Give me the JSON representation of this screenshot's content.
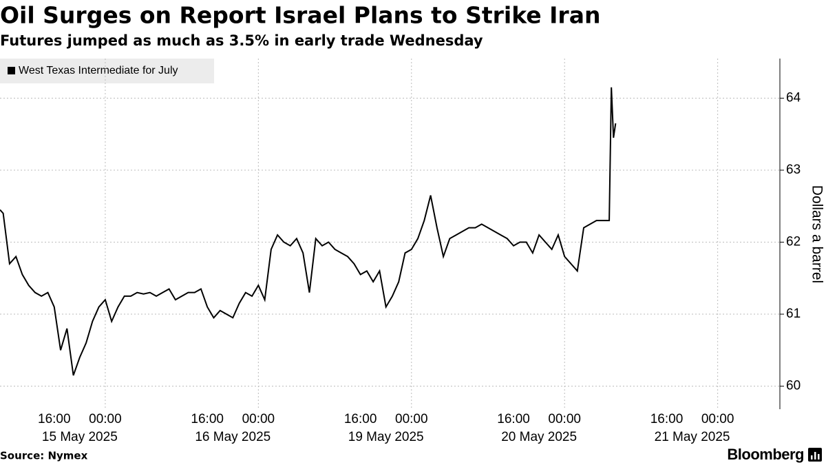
{
  "chart_data": {
    "type": "line",
    "title": "Oil Surges on Report Israel Plans to Strike Iran",
    "subtitle": "Futures jumped as much as 3.5% in early trade Wednesday",
    "y_axis_label": "Dollars a barrel",
    "source": "Source: Nymex",
    "branding": "Bloomberg",
    "legend_position": "top-left",
    "x": [
      "2025-05-15T07:30",
      "2025-05-15T08:00",
      "2025-05-15T09:00",
      "2025-05-15T10:00",
      "2025-05-15T11:00",
      "2025-05-15T12:00",
      "2025-05-15T13:00",
      "2025-05-15T14:00",
      "2025-05-15T15:00",
      "2025-05-15T16:00",
      "2025-05-15T17:00",
      "2025-05-15T18:00",
      "2025-05-15T19:00",
      "2025-05-15T20:00",
      "2025-05-15T21:00",
      "2025-05-15T22:00",
      "2025-05-15T23:00",
      "2025-05-16T00:00",
      "2025-05-16T01:00",
      "2025-05-16T02:00",
      "2025-05-16T03:00",
      "2025-05-16T04:00",
      "2025-05-16T05:00",
      "2025-05-16T06:00",
      "2025-05-16T07:00",
      "2025-05-16T08:00",
      "2025-05-16T09:00",
      "2025-05-16T10:00",
      "2025-05-16T11:00",
      "2025-05-16T12:00",
      "2025-05-16T13:00",
      "2025-05-16T14:00",
      "2025-05-16T15:00",
      "2025-05-16T16:00",
      "2025-05-16T17:00",
      "2025-05-16T18:00",
      "2025-05-16T19:00",
      "2025-05-16T20:00",
      "2025-05-16T21:00",
      "2025-05-16T22:00",
      "2025-05-16T23:00",
      "2025-05-19T00:00",
      "2025-05-19T01:00",
      "2025-05-19T02:00",
      "2025-05-19T03:00",
      "2025-05-19T04:00",
      "2025-05-19T05:00",
      "2025-05-19T06:00",
      "2025-05-19T07:00",
      "2025-05-19T08:00",
      "2025-05-19T09:00",
      "2025-05-19T10:00",
      "2025-05-19T11:00",
      "2025-05-19T12:00",
      "2025-05-19T13:00",
      "2025-05-19T14:00",
      "2025-05-19T15:00",
      "2025-05-19T16:00",
      "2025-05-19T17:00",
      "2025-05-19T18:00",
      "2025-05-19T19:00",
      "2025-05-19T20:00",
      "2025-05-19T21:00",
      "2025-05-19T22:00",
      "2025-05-19T23:00",
      "2025-05-20T00:00",
      "2025-05-20T01:00",
      "2025-05-20T02:00",
      "2025-05-20T03:00",
      "2025-05-20T04:00",
      "2025-05-20T05:00",
      "2025-05-20T06:00",
      "2025-05-20T07:00",
      "2025-05-20T08:00",
      "2025-05-20T09:00",
      "2025-05-20T10:00",
      "2025-05-20T11:00",
      "2025-05-20T12:00",
      "2025-05-20T13:00",
      "2025-05-20T14:00",
      "2025-05-20T15:00",
      "2025-05-20T16:00",
      "2025-05-20T17:00",
      "2025-05-20T18:00",
      "2025-05-20T19:00",
      "2025-05-20T20:00",
      "2025-05-20T21:00",
      "2025-05-20T22:00",
      "2025-05-20T23:00",
      "2025-05-21T00:00",
      "2025-05-21T01:00",
      "2025-05-21T02:00",
      "2025-05-21T03:00",
      "2025-05-21T04:00",
      "2025-05-21T05:00",
      "2025-05-21T06:00",
      "2025-05-21T07:00",
      "2025-05-21T07:20",
      "2025-05-21T07:40",
      "2025-05-21T08:00"
    ],
    "series": [
      {
        "name": "West Texas Intermediate for July",
        "color": "#000000",
        "values": [
          62.45,
          62.4,
          61.7,
          61.8,
          61.55,
          61.4,
          61.3,
          61.25,
          61.3,
          61.1,
          60.5,
          60.8,
          60.15,
          60.4,
          60.6,
          60.9,
          61.1,
          61.2,
          60.9,
          61.1,
          61.25,
          61.25,
          61.3,
          61.28,
          61.3,
          61.25,
          61.3,
          61.35,
          61.2,
          61.25,
          61.3,
          61.3,
          61.35,
          61.1,
          60.95,
          61.05,
          61.0,
          60.95,
          61.15,
          61.3,
          61.25,
          61.4,
          61.2,
          61.9,
          62.1,
          62.0,
          61.95,
          62.05,
          61.85,
          61.3,
          62.05,
          61.95,
          62.0,
          61.9,
          61.85,
          61.8,
          61.7,
          61.55,
          61.6,
          61.45,
          61.6,
          61.1,
          61.25,
          61.45,
          61.85,
          61.9,
          62.05,
          62.3,
          62.65,
          62.2,
          61.8,
          62.05,
          62.1,
          62.15,
          62.2,
          62.2,
          62.25,
          62.2,
          62.15,
          62.1,
          62.05,
          61.95,
          62.0,
          62.0,
          61.85,
          62.1,
          62.0,
          61.9,
          62.1,
          61.8,
          61.7,
          61.6,
          62.2,
          62.25,
          62.3,
          62.3,
          62.3,
          64.15,
          63.45,
          63.65
        ]
      }
    ],
    "xlim": [
      "2025-05-15T07:30",
      "2025-05-22T09:45"
    ],
    "xticks": [
      {
        "value": "2025-05-15T16:00",
        "label": "16:00"
      },
      {
        "value": "2025-05-16T00:00",
        "label": "00:00"
      },
      {
        "value": "2025-05-16T16:00",
        "label": "16:00"
      },
      {
        "value": "2025-05-17T00:00",
        "label": "00:00"
      },
      {
        "value": "2025-05-19T16:00",
        "label": "16:00"
      },
      {
        "value": "2025-05-20T00:00",
        "label": "00:00"
      },
      {
        "value": "2025-05-20T16:00",
        "label": "16:00"
      },
      {
        "value": "2025-05-21T00:00",
        "label": "00:00"
      },
      {
        "value": "2025-05-21T16:00",
        "label": "16:00"
      },
      {
        "value": "2025-05-22T00:00",
        "label": "00:00"
      }
    ],
    "x_date_labels": [
      "15 May 2025",
      "16 May 2025",
      "19 May 2025",
      "20 May 2025",
      "21 May 2025"
    ],
    "ylim": [
      59.68,
      64.55
    ],
    "yticks": [
      60,
      61,
      62,
      63,
      64
    ],
    "grid": true
  }
}
